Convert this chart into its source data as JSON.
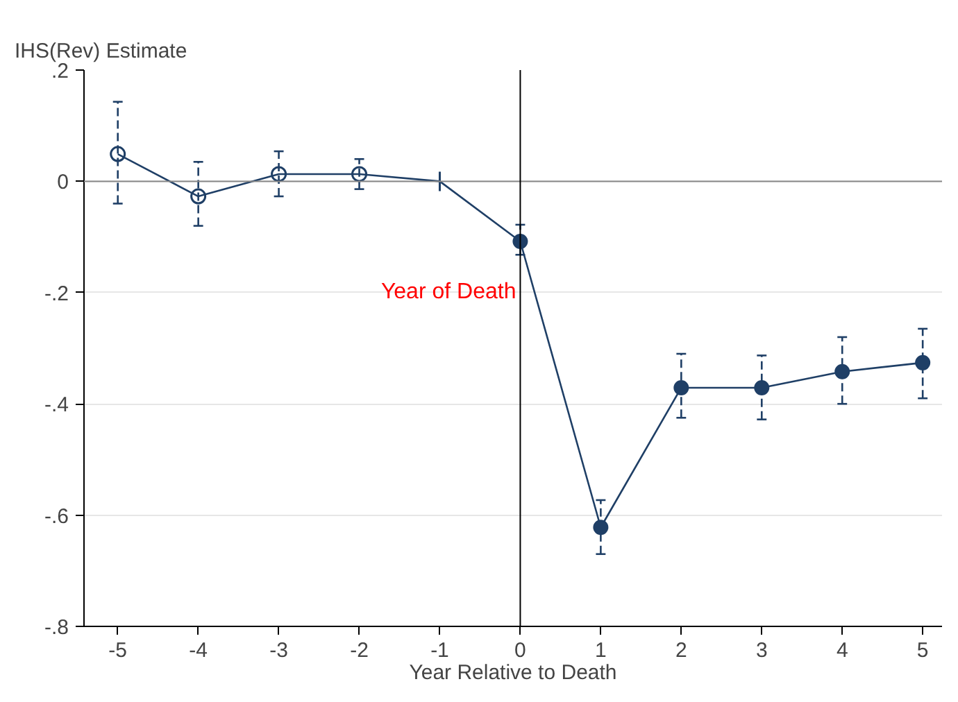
{
  "chart_data": {
    "type": "line",
    "ylabel": "IHS(Rev) Estimate",
    "xlabel": "Year Relative to Death",
    "xlim": [
      -5.42,
      5.24
    ],
    "ylim": [
      -0.8,
      0.2
    ],
    "xticks": [
      -5,
      -4,
      -3,
      -2,
      -1,
      0,
      1,
      2,
      3,
      4,
      5
    ],
    "yticks": [
      {
        "value": 0.2,
        "label": ".2"
      },
      0,
      {
        "value": -0.2,
        "label": "-.2"
      },
      {
        "value": -0.4,
        "label": "-.4"
      },
      {
        "value": -0.6,
        "label": "-.6"
      },
      {
        "value": -0.8,
        "label": "-.8"
      }
    ],
    "grid": "y",
    "line_style": "solid",
    "series": [
      {
        "color": "#1f3f66",
        "x": [
          -5,
          -4,
          -3,
          -2,
          -1,
          0,
          1,
          2,
          3,
          4,
          5
        ],
        "values": [
          0.049,
          -0.027,
          0.013,
          0.013,
          0,
          -0.108,
          -0.622,
          -0.371,
          -0.371,
          -0.342,
          -0.326
        ],
        "marker": [
          "circle_open",
          "circle_open",
          "circle_open",
          "circle_open",
          "vline",
          "circle",
          "circle",
          "circle",
          "circle",
          "circle",
          "circle"
        ],
        "errors": [
          [
            -0.04,
            0.143
          ],
          [
            -0.08,
            0.035
          ],
          [
            -0.027,
            0.054
          ],
          [
            -0.014,
            0.04
          ],
          null,
          [
            -0.132,
            -0.078
          ],
          [
            -0.67,
            -0.573
          ],
          [
            -0.425,
            -0.31
          ],
          [
            -0.428,
            -0.313
          ],
          [
            -0.4,
            -0.28
          ],
          [
            -0.39,
            -0.265
          ]
        ]
      }
    ],
    "ref_lines": [
      {
        "axis": "y",
        "value": 0,
        "color": "#888888"
      },
      {
        "axis": "x",
        "value": 0,
        "color": "#000000",
        "label": "Year of Death"
      }
    ]
  }
}
